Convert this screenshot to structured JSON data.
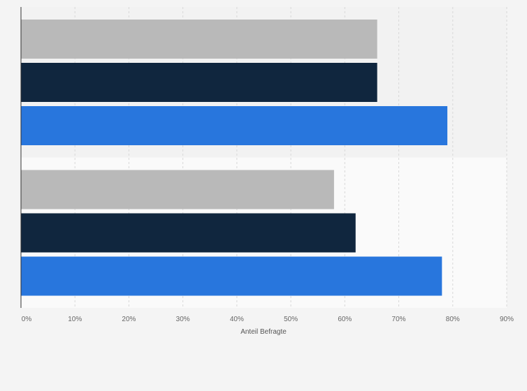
{
  "chart_data": {
    "type": "bar",
    "orientation": "horizontal",
    "categories": [
      "",
      ""
    ],
    "series": [
      {
        "color": "#b9b9b9",
        "values": [
          66,
          58
        ]
      },
      {
        "color": "#10263e",
        "values": [
          66,
          62
        ]
      },
      {
        "color": "#2876dd",
        "values": [
          79,
          78
        ]
      }
    ],
    "xlabel": "Anteil Befragte",
    "xlim": [
      0,
      90
    ],
    "xticks": [
      0,
      10,
      20,
      30,
      40,
      50,
      60,
      70,
      80,
      90
    ],
    "tick_suffix": "%",
    "grid": true,
    "legend": "none",
    "colors": {
      "band_odd": "#f2f2f2",
      "band_even": "#fafafa",
      "grid": "#d8d8d8",
      "axis": "#333333"
    }
  }
}
